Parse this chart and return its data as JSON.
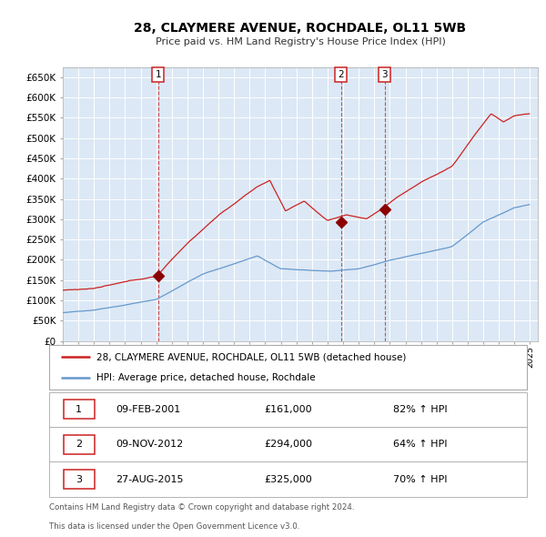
{
  "title": "28, CLAYMERE AVENUE, ROCHDALE, OL11 5WB",
  "subtitle": "Price paid vs. HM Land Registry's House Price Index (HPI)",
  "legend_line1": "28, CLAYMERE AVENUE, ROCHDALE, OL11 5WB (detached house)",
  "legend_line2": "HPI: Average price, detached house, Rochdale",
  "table_rows": [
    {
      "num": "1",
      "date": "09-FEB-2001",
      "price": "£161,000",
      "pct": "82% ↑ HPI"
    },
    {
      "num": "2",
      "date": "09-NOV-2012",
      "price": "£294,000",
      "pct": "64% ↑ HPI"
    },
    {
      "num": "3",
      "date": "27-AUG-2015",
      "price": "£325,000",
      "pct": "70% ↑ HPI"
    }
  ],
  "footnote1": "Contains HM Land Registry data © Crown copyright and database right 2024.",
  "footnote2": "This data is licensed under the Open Government Licence v3.0.",
  "hpi_color": "#6699cc",
  "price_color": "#cc2222",
  "background_color": "#dce8f5",
  "marker_color": "#8b0000",
  "vline_color": "#cc3333",
  "sale_years": [
    2001.12,
    2012.87,
    2015.67
  ],
  "sale_price_vals": [
    161000,
    294000,
    325000
  ],
  "sale_labels": [
    "1",
    "2",
    "3"
  ],
  "ylim": [
    0,
    675000
  ],
  "yticks": [
    0,
    50000,
    100000,
    150000,
    200000,
    250000,
    300000,
    350000,
    400000,
    450000,
    500000,
    550000,
    600000,
    650000
  ],
  "xlim_start": 1995.0,
  "xlim_end": 2025.5
}
